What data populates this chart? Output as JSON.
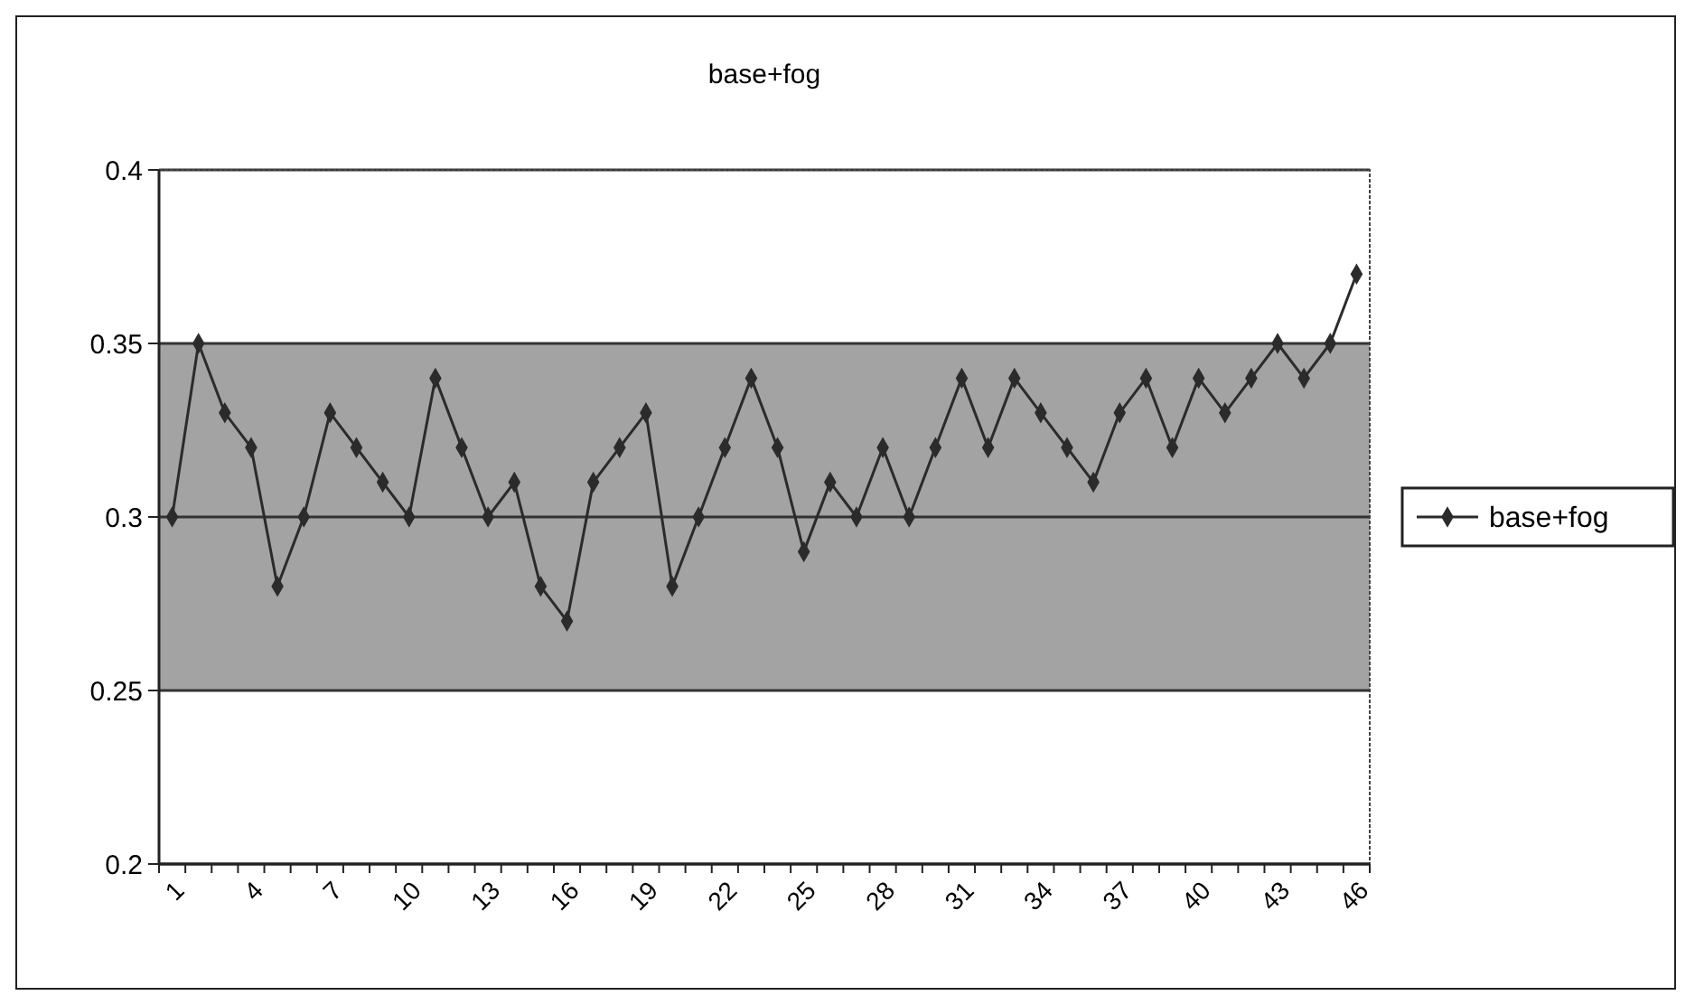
{
  "chart_data": {
    "type": "line",
    "title": "base+fog",
    "categories": [
      "1",
      null,
      null,
      "4",
      null,
      null,
      "7",
      null,
      null,
      "10",
      null,
      null,
      "13",
      null,
      null,
      "16",
      null,
      null,
      "19",
      null,
      null,
      "22",
      null,
      null,
      "25",
      null,
      null,
      "28",
      null,
      null,
      "31",
      null,
      null,
      "34",
      null,
      null,
      "37",
      null,
      null,
      "40",
      null,
      null,
      "43",
      null,
      null,
      "46"
    ],
    "series": [
      {
        "name": "base+fog",
        "color": "#2b2b2b",
        "values": [
          0.3,
          0.35,
          0.33,
          0.32,
          0.28,
          0.3,
          0.33,
          0.32,
          0.31,
          0.3,
          0.34,
          0.32,
          0.3,
          0.31,
          0.28,
          0.27,
          0.31,
          0.32,
          0.33,
          0.28,
          0.3,
          0.32,
          0.34,
          0.32,
          0.29,
          0.31,
          0.3,
          0.32,
          0.3,
          0.32,
          0.34,
          0.32,
          0.34,
          0.33,
          0.32,
          0.31,
          0.33,
          0.34,
          0.32,
          0.34,
          0.33,
          0.34,
          0.35,
          0.34,
          0.35,
          0.37
        ]
      }
    ],
    "ylim": [
      0.2,
      0.4
    ],
    "yticks": [
      0.2,
      0.25,
      0.3,
      0.35,
      0.4
    ],
    "bands": [
      {
        "axis": "y",
        "from": 0.25,
        "to": 0.35,
        "color": "#a3a3a3"
      }
    ],
    "grid": "y",
    "legend": "right",
    "marker": "diamond",
    "line_style": "solid"
  }
}
